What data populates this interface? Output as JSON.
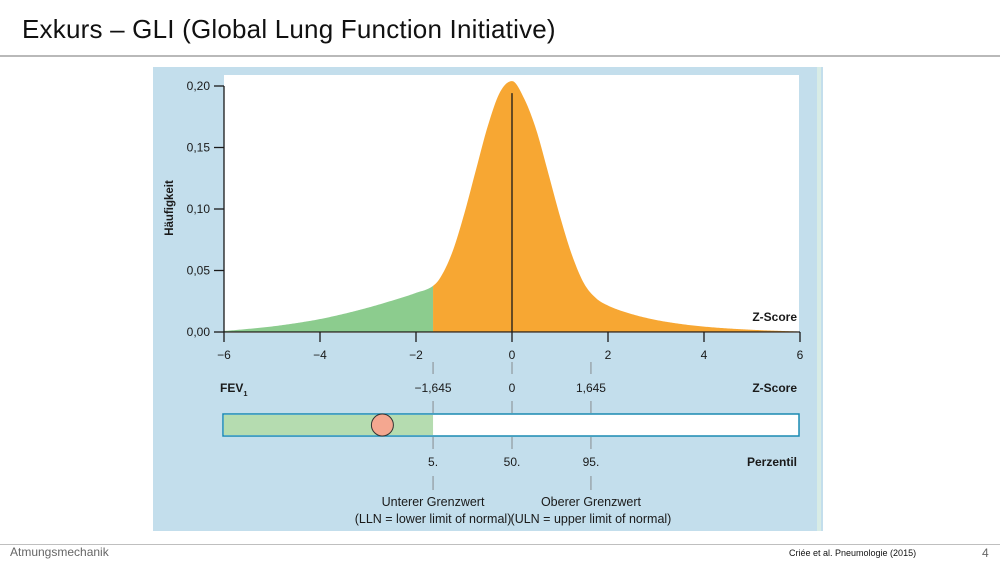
{
  "slide": {
    "title": "Exkurs – GLI (Global Lung Function Initiative)",
    "footer_left": "Atmungsmechanik",
    "citation": "Criée et al. Pneumologie (2015)",
    "page_number": "4"
  },
  "colors": {
    "panel_bg": "#c3deec",
    "orange": "#f7a733",
    "green": "#8ccc8e",
    "bar_green": "#b5dcb0",
    "bar_border": "#1b8ab2",
    "marker": "#f4a790",
    "axis": "#1a1a1a"
  },
  "chart_data": {
    "type": "area",
    "subtype": "density curve (asymmetric, heavy left tail)",
    "ylabel": "Häufigkeit",
    "xlabel": "Z-Score",
    "xlim": [
      -6,
      6
    ],
    "ylim": [
      0,
      0.2
    ],
    "x_ticks": [
      -6,
      -4,
      -2,
      0,
      2,
      4,
      6
    ],
    "x_tick_labels": [
      "−6",
      "−4",
      "−2",
      "0",
      "2",
      "4",
      "6"
    ],
    "y_ticks": [
      0,
      0.05,
      0.1,
      0.15,
      0.2
    ],
    "y_tick_labels": [
      "0,00",
      "0,05",
      "0,10",
      "0,15",
      "0,20"
    ],
    "peak": 0.204,
    "curve": {
      "x": [
        -6,
        -5.5,
        -5,
        -4.5,
        -4,
        -3.5,
        -3,
        -2.5,
        -2,
        -1.645,
        -1.5,
        -1.25,
        -1,
        -0.75,
        -0.5,
        -0.25,
        0,
        0.25,
        0.5,
        0.75,
        1,
        1.25,
        1.5,
        1.75,
        2,
        2.5,
        3,
        3.5,
        4,
        4.5,
        5,
        5.5,
        6
      ],
      "y": [
        0.0008,
        0.0025,
        0.0045,
        0.0072,
        0.0105,
        0.0148,
        0.0198,
        0.0255,
        0.0318,
        0.0375,
        0.0438,
        0.0642,
        0.0954,
        0.132,
        0.168,
        0.195,
        0.204,
        0.19,
        0.165,
        0.13,
        0.094,
        0.0625,
        0.0395,
        0.0275,
        0.0215,
        0.0145,
        0.0098,
        0.0066,
        0.0044,
        0.0029,
        0.0018,
        0.001,
        0.0004
      ]
    },
    "regions": [
      {
        "from": -6,
        "to": -1.645,
        "color": "green"
      },
      {
        "from": -1.645,
        "to": 6,
        "color": "orange"
      }
    ],
    "center_line_x": 0,
    "fev_scale": {
      "label_main": "FEV",
      "label_sub": "1",
      "right_label": "Z-Score",
      "markers": [
        {
          "z": -1.645,
          "label": "−1,645"
        },
        {
          "z": 0,
          "label": "0"
        },
        {
          "z": 1.645,
          "label": "1,645"
        }
      ]
    },
    "percentile_bar": {
      "right_label": "Perzentil",
      "green_to_z": -1.645,
      "marker_z": -2.7,
      "percentiles": [
        {
          "z": -1.645,
          "label": "5."
        },
        {
          "z": 0,
          "label": "50."
        },
        {
          "z": 1.645,
          "label": "95."
        }
      ]
    },
    "annotations": [
      {
        "z": -1.645,
        "line1": "Unterer Grenzwert",
        "line2": "(LLN = lower limit of normal)"
      },
      {
        "z": 1.645,
        "line1": "Oberer Grenzwert",
        "line2": "(ULN = upper limit of normal)"
      }
    ]
  }
}
